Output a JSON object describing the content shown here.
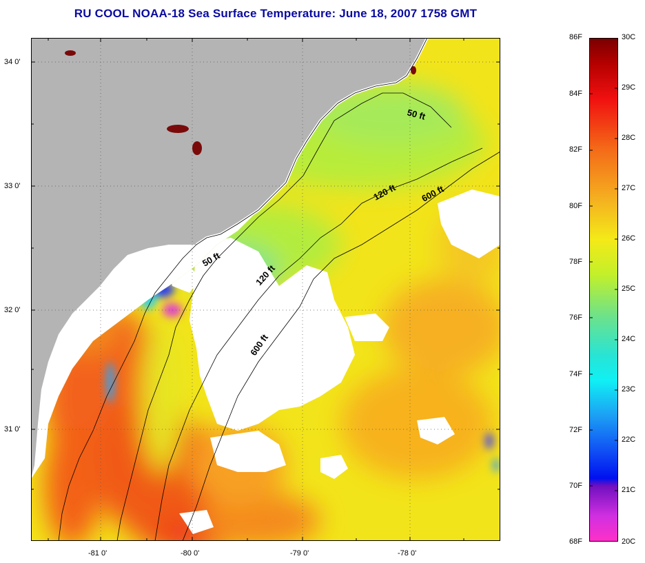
{
  "title": "RU COOL  NOAA-18  Sea Surface Temperature:  June 18, 2007 1758 GMT",
  "axes": {
    "lat_labels": [
      "34 0'",
      "33 0'",
      "32 0'",
      "31 0'"
    ],
    "lon_labels": [
      "-81 0'",
      "-80 0'",
      "-79 0'",
      "-78 0'"
    ]
  },
  "contours": {
    "labels": [
      "50 ft",
      "120 ft",
      "600 ft",
      "50 ft",
      "120 ft",
      "600 ft"
    ]
  },
  "colorbar": {
    "f_labels": [
      "86F",
      "84F",
      "82F",
      "80F",
      "78F",
      "76F",
      "74F",
      "72F",
      "70F",
      "68F"
    ],
    "c_labels": [
      "30C",
      "29C",
      "28C",
      "27C",
      "26C",
      "25C",
      "24C",
      "23C",
      "22C",
      "21C",
      "20C"
    ]
  },
  "colors": {
    "land": "#b4b4b4",
    "cloud": "#ffffff",
    "title": "#0a0aa0"
  }
}
